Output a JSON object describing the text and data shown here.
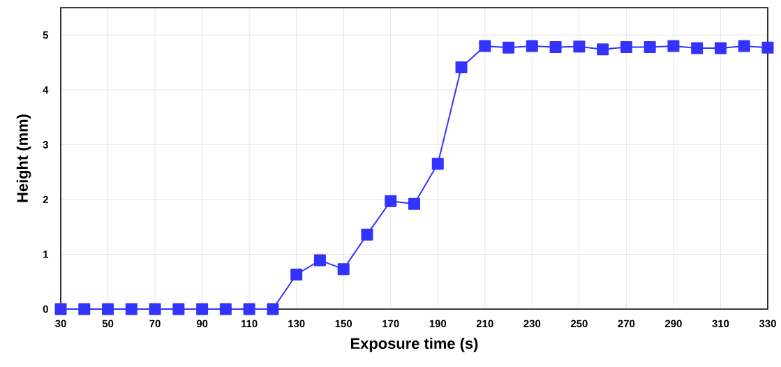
{
  "chart_data": {
    "type": "line",
    "xlabel": "Exposure time (s)",
    "ylabel": "Height (mm)",
    "x": [
      30,
      40,
      50,
      60,
      70,
      80,
      90,
      100,
      110,
      120,
      130,
      140,
      150,
      160,
      170,
      180,
      190,
      200,
      210,
      220,
      230,
      240,
      250,
      260,
      270,
      280,
      290,
      300,
      310,
      320,
      330
    ],
    "series": [
      {
        "color": "#3333ff",
        "values": [
          0,
          0,
          0,
          0,
          0,
          0,
          0,
          0,
          0,
          0,
          0.63,
          0.89,
          0.73,
          1.36,
          1.97,
          1.92,
          2.65,
          4.41,
          4.8,
          4.77,
          4.8,
          4.78,
          4.79,
          4.74,
          4.78,
          4.78,
          4.8,
          4.76,
          4.76,
          4.8,
          4.77
        ]
      }
    ],
    "xlim": [
      30,
      330
    ],
    "ylim": [
      0,
      5.5
    ],
    "xticks": [
      30,
      50,
      70,
      90,
      110,
      130,
      150,
      170,
      190,
      210,
      230,
      250,
      270,
      290,
      310,
      330
    ],
    "yticks": [
      0,
      1,
      2,
      3,
      4,
      5
    ],
    "grid": true,
    "marker": "square",
    "line_style": "solid"
  }
}
